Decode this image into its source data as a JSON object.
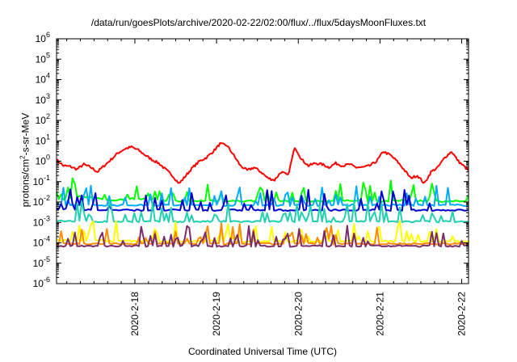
{
  "title": "/data/run/goesPlots/archive/2020-02-22/02:00/flux/../flux/5daysMoonFluxes.txt",
  "xlabel": "Coordinated Universal Time (UTC)",
  "ylabel_parts": [
    "protons/cm",
    "2",
    "-s-sr-MeV"
  ],
  "chart_data": {
    "type": "line",
    "title": "/data/run/goesPlots/archive/2020-02-22/02:00/flux/../flux/5daysMoonFluxes.txt",
    "xlabel": "Coordinated Universal Time (UTC)",
    "ylabel": "protons/cm2-s-sr-MeV",
    "y_scale": "log",
    "ylim": [
      1e-06,
      1000000.0
    ],
    "xlim": [
      "2020-02-17 01:00",
      "2020-02-22 02:00"
    ],
    "grid": false,
    "legend": "none",
    "x_ticks": [
      "2020-2-18",
      "2020-2-19",
      "2020-2-20",
      "2020-2-21",
      "2020-2-22"
    ],
    "y_ticks": [
      {
        "mant": "10",
        "exp": "-6"
      },
      {
        "mant": "10",
        "exp": "-5"
      },
      {
        "mant": "10",
        "exp": "-4"
      },
      {
        "mant": "10",
        "exp": "-3"
      },
      {
        "mant": "10",
        "exp": "-2"
      },
      {
        "mant": "10",
        "exp": "-1"
      },
      {
        "mant": "10",
        "exp": "0"
      },
      {
        "mant": "10",
        "exp": "1"
      },
      {
        "mant": "10",
        "exp": "2"
      },
      {
        "mant": "10",
        "exp": "3"
      },
      {
        "mant": "10",
        "exp": "4"
      },
      {
        "mant": "10",
        "exp": "5"
      },
      {
        "mant": "10",
        "exp": "6"
      }
    ],
    "series": [
      {
        "color": "#ff0000",
        "x": [
          "2020-02-17 01:00",
          "2020-02-17 03:00",
          "2020-02-17 05:00",
          "2020-02-17 07:00",
          "2020-02-17 09:00",
          "2020-02-17 11:00",
          "2020-02-17 13:00",
          "2020-02-17 15:00",
          "2020-02-17 17:00",
          "2020-02-17 19:00",
          "2020-02-17 21:00",
          "2020-02-17 23:00",
          "2020-02-18 01:00",
          "2020-02-18 03:00",
          "2020-02-18 05:00",
          "2020-02-18 07:00",
          "2020-02-18 09:00",
          "2020-02-18 11:00",
          "2020-02-18 13:00",
          "2020-02-18 15:00",
          "2020-02-18 17:00",
          "2020-02-18 19:00",
          "2020-02-18 21:00",
          "2020-02-18 23:00",
          "2020-02-19 01:00",
          "2020-02-19 03:00",
          "2020-02-19 05:00",
          "2020-02-19 07:00",
          "2020-02-19 09:00",
          "2020-02-19 11:00",
          "2020-02-19 13:00",
          "2020-02-19 15:00",
          "2020-02-19 17:00",
          "2020-02-19 19:00",
          "2020-02-19 21:00",
          "2020-02-19 23:00",
          "2020-02-20 01:00",
          "2020-02-20 03:00",
          "2020-02-20 05:00",
          "2020-02-20 07:00",
          "2020-02-20 09:00",
          "2020-02-20 11:00",
          "2020-02-20 13:00",
          "2020-02-20 15:00",
          "2020-02-20 17:00",
          "2020-02-20 19:00",
          "2020-02-20 21:00",
          "2020-02-20 23:00",
          "2020-02-21 01:00",
          "2020-02-21 03:00",
          "2020-02-21 05:00",
          "2020-02-21 07:00",
          "2020-02-21 09:00",
          "2020-02-21 11:00",
          "2020-02-21 13:00",
          "2020-02-21 15:00",
          "2020-02-21 17:00",
          "2020-02-21 19:00",
          "2020-02-21 21:00",
          "2020-02-21 23:00",
          "2020-02-22 01:00",
          "2020-02-22 02:00"
        ],
        "y": [
          1.2,
          0.6,
          0.55,
          0.4,
          0.7,
          0.5,
          0.3,
          0.6,
          1.2,
          2.5,
          4.0,
          5.0,
          3.5,
          2.0,
          1.2,
          0.8,
          0.4,
          0.2,
          0.08,
          0.2,
          0.5,
          1.0,
          1.5,
          3.0,
          7.0,
          6.0,
          2.0,
          0.6,
          0.35,
          0.5,
          0.3,
          0.15,
          0.12,
          0.3,
          0.2,
          5.0,
          1.2,
          0.6,
          0.8,
          0.7,
          0.5,
          0.8,
          0.6,
          0.7,
          0.5,
          0.5,
          0.6,
          1.0,
          3.0,
          2.0,
          1.0,
          0.4,
          0.15,
          0.2,
          0.08,
          0.3,
          0.5,
          1.5,
          3.0,
          1.0,
          0.5,
          0.35
        ]
      },
      {
        "color": "#00ff00",
        "x": [
          "2020-02-17 01:00",
          "2020-02-17 08:00",
          "2020-02-17 16:00",
          "2020-02-18 00:00",
          "2020-02-18 08:00",
          "2020-02-18 16:00",
          "2020-02-19 00:00",
          "2020-02-19 08:00",
          "2020-02-19 16:00",
          "2020-02-20 00:00",
          "2020-02-20 08:00",
          "2020-02-20 16:00",
          "2020-02-21 00:00",
          "2020-02-21 08:00",
          "2020-02-21 16:00",
          "2020-02-22 00:00",
          "2020-02-22 02:00"
        ],
        "y": [
          0.012,
          0.02,
          0.012,
          0.015,
          0.012,
          0.011,
          0.012,
          0.011,
          0.012,
          0.011,
          0.011,
          0.012,
          0.011,
          0.012,
          0.011,
          0.011,
          0.011
        ],
        "spiky": true
      },
      {
        "color": "#00aaff",
        "x": [
          "2020-02-17 01:00",
          "2020-02-17 12:00",
          "2020-02-18 00:00",
          "2020-02-18 12:00",
          "2020-02-19 00:00",
          "2020-02-19 12:00",
          "2020-02-20 00:00",
          "2020-02-20 12:00",
          "2020-02-21 00:00",
          "2020-02-21 12:00",
          "2020-02-22 00:00",
          "2020-02-22 02:00"
        ],
        "y": [
          0.007,
          0.007,
          0.007,
          0.007,
          0.007,
          0.007,
          0.007,
          0.007,
          0.007,
          0.007,
          0.007,
          0.007
        ],
        "spiky": true
      },
      {
        "color": "#0000cc",
        "x": [
          "2020-02-17 01:00",
          "2020-02-17 12:00",
          "2020-02-18 00:00",
          "2020-02-18 12:00",
          "2020-02-19 00:00",
          "2020-02-19 12:00",
          "2020-02-20 00:00",
          "2020-02-20 12:00",
          "2020-02-21 00:00",
          "2020-02-21 12:00",
          "2020-02-22 00:00",
          "2020-02-22 02:00"
        ],
        "y": [
          0.0045,
          0.004,
          0.004,
          0.004,
          0.004,
          0.004,
          0.004,
          0.004,
          0.004,
          0.004,
          0.004,
          0.004
        ],
        "spiky": true
      },
      {
        "color": "#20d0b0",
        "x": [
          "2020-02-17 01:00",
          "2020-02-17 12:00",
          "2020-02-18 00:00",
          "2020-02-18 12:00",
          "2020-02-19 00:00",
          "2020-02-19 12:00",
          "2020-02-20 00:00",
          "2020-02-20 12:00",
          "2020-02-21 00:00",
          "2020-02-21 12:00",
          "2020-02-22 00:00",
          "2020-02-22 02:00"
        ],
        "y": [
          0.0012,
          0.0011,
          0.0011,
          0.0011,
          0.0011,
          0.0011,
          0.0011,
          0.0011,
          0.0011,
          0.0011,
          0.0011,
          0.0011
        ],
        "spiky": true
      },
      {
        "color": "#ffff00",
        "x": [
          "2020-02-17 01:00",
          "2020-02-17 12:00",
          "2020-02-18 00:00",
          "2020-02-18 12:00",
          "2020-02-19 00:00",
          "2020-02-19 12:00",
          "2020-02-20 00:00",
          "2020-02-20 12:00",
          "2020-02-21 00:00",
          "2020-02-21 12:00",
          "2020-02-22 00:00",
          "2020-02-22 02:00"
        ],
        "y": [
          0.00013,
          0.00013,
          0.00012,
          0.00012,
          0.00012,
          0.00012,
          0.00012,
          0.00012,
          0.00012,
          0.00012,
          0.00012,
          0.00012
        ],
        "spiky": true
      },
      {
        "color": "#ff8c00",
        "x": [
          "2020-02-17 01:00",
          "2020-02-17 12:00",
          "2020-02-18 00:00",
          "2020-02-18 12:00",
          "2020-02-19 00:00",
          "2020-02-19 12:00",
          "2020-02-20 00:00",
          "2020-02-20 12:00",
          "2020-02-21 00:00",
          "2020-02-21 12:00",
          "2020-02-22 00:00",
          "2020-02-22 02:00"
        ],
        "y": [
          9e-05,
          9e-05,
          9e-05,
          9e-05,
          9e-05,
          9e-05,
          9e-05,
          9e-05,
          9e-05,
          9e-05,
          9e-05,
          9e-05
        ],
        "spiky": true
      },
      {
        "color": "#7b2d6b",
        "x": [
          "2020-02-17 01:00",
          "2020-02-17 12:00",
          "2020-02-18 00:00",
          "2020-02-18 12:00",
          "2020-02-19 00:00",
          "2020-02-19 12:00",
          "2020-02-20 00:00",
          "2020-02-20 12:00",
          "2020-02-21 00:00",
          "2020-02-21 12:00",
          "2020-02-22 00:00",
          "2020-02-22 02:00"
        ],
        "y": [
          7e-05,
          7e-05,
          7e-05,
          7e-05,
          7e-05,
          7e-05,
          7e-05,
          7e-05,
          7e-05,
          7e-05,
          7e-05,
          7e-05
        ],
        "spiky": true
      }
    ]
  }
}
